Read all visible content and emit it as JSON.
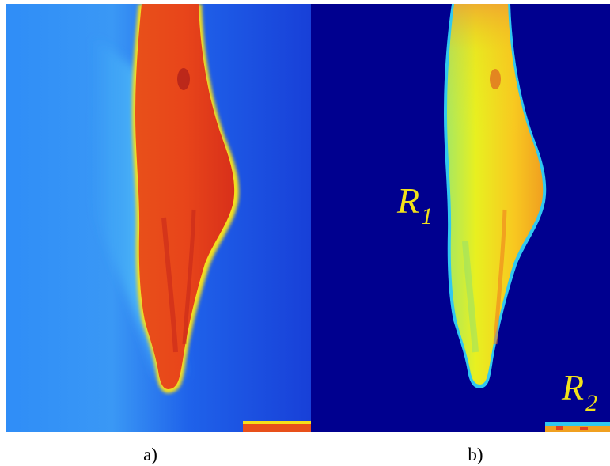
{
  "figure": {
    "panels": [
      {
        "id": "a",
        "caption": "a)",
        "colormap": "jet",
        "background_color": "#1f6ff0",
        "foreground_color": "#e8501a"
      },
      {
        "id": "b",
        "caption": "b)",
        "colormap": "jet",
        "background_color": "#00008f",
        "foreground_color": "#f2e21a",
        "region_labels": [
          {
            "main": "R",
            "sub": "1"
          },
          {
            "main": "R",
            "sub": "2"
          }
        ],
        "label_color": "#f2e21a"
      }
    ]
  }
}
